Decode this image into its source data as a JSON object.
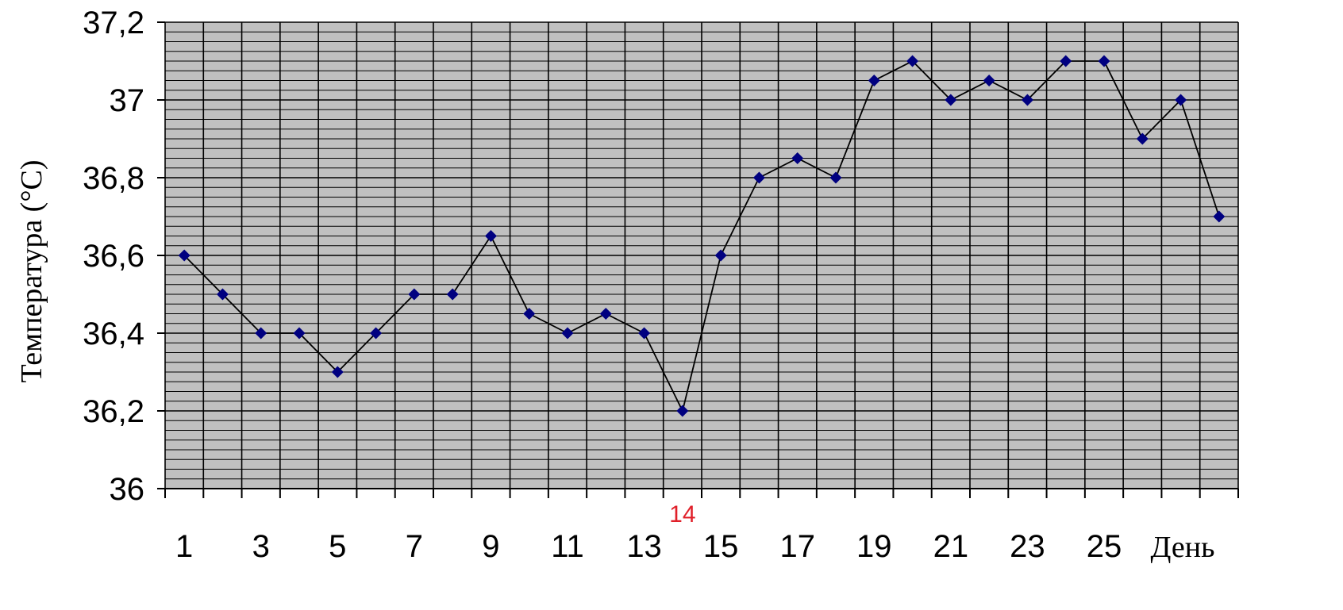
{
  "chart_data": {
    "type": "line",
    "title": "",
    "ylabel": "Температура (°C)",
    "xlabel": "День",
    "x": [
      1,
      2,
      3,
      4,
      5,
      6,
      7,
      8,
      9,
      10,
      11,
      12,
      13,
      14,
      15,
      16,
      17,
      18,
      19,
      20,
      21,
      22,
      23,
      24,
      25,
      26,
      27,
      28
    ],
    "values": [
      36.6,
      36.5,
      36.4,
      36.4,
      36.3,
      36.4,
      36.5,
      36.5,
      36.65,
      36.45,
      36.4,
      36.45,
      36.4,
      36.2,
      36.6,
      36.8,
      36.85,
      36.8,
      37.05,
      37.1,
      37.0,
      37.05,
      37.0,
      37.1,
      37.1,
      36.9,
      37.0,
      36.7
    ],
    "ylim": [
      36,
      37.2
    ],
    "y_ticks": [
      "36",
      "36,2",
      "36,4",
      "36,6",
      "36,8",
      "37",
      "37,2"
    ],
    "x_tick_labels": [
      "1",
      "3",
      "5",
      "7",
      "9",
      "11",
      "13",
      "15",
      "17",
      "19",
      "21",
      "23",
      "25"
    ],
    "highlight_label": "14",
    "grid": true,
    "colors": {
      "plot_bg": "#c0c0c0",
      "grid": "#000000",
      "line": "#000000",
      "marker": "#000080",
      "highlight": "#e0202a"
    }
  }
}
